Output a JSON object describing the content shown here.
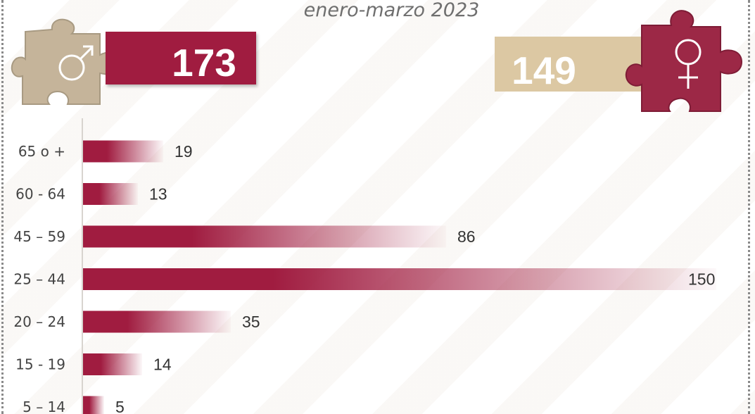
{
  "subtitle": "enero-marzo 2023",
  "male": {
    "total": "173",
    "icon": "male-symbol-icon",
    "color": "#a01c40"
  },
  "female": {
    "total": "149",
    "icon": "female-symbol-icon",
    "color": "#dcc8a3"
  },
  "chart_data": {
    "type": "bar",
    "orientation": "horizontal",
    "categories": [
      "65 o +",
      "60 - 64",
      "45 – 59",
      "25 – 44",
      "20 – 24",
      "15 - 19",
      "5 – 14"
    ],
    "values": [
      19,
      13,
      86,
      150,
      35,
      14,
      5
    ],
    "xlim": [
      0,
      150
    ],
    "grid": false,
    "bar_color": "#a01c40"
  }
}
